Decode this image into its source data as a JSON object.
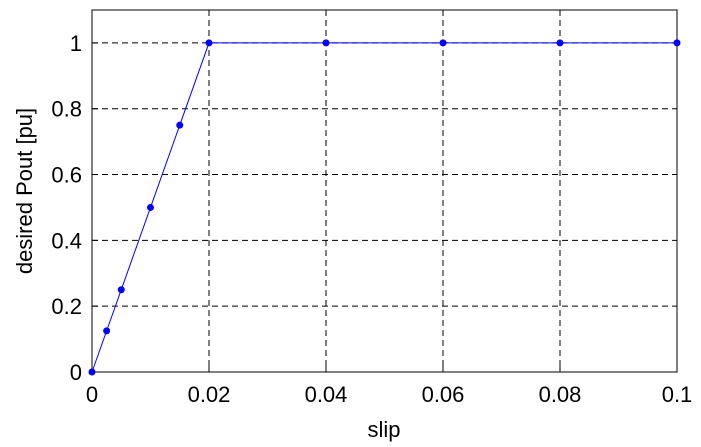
{
  "chart_data": {
    "type": "line",
    "x": [
      0,
      0.0025,
      0.005,
      0.01,
      0.015,
      0.02,
      0.04,
      0.06,
      0.08,
      0.1
    ],
    "series": [
      {
        "color": "#0000ff",
        "values": [
          0,
          0.125,
          0.25,
          0.5,
          0.75,
          1,
          1,
          1,
          1,
          1
        ]
      }
    ],
    "xlabel": "slip",
    "ylabel": "desired Pout [pu]",
    "xlim": [
      0,
      0.1
    ],
    "ylim": [
      0,
      1.1
    ],
    "xticks": [
      0,
      0.02,
      0.04,
      0.06,
      0.08,
      0.1
    ],
    "yticks": [
      0,
      0.2,
      0.4,
      0.6,
      0.8,
      1
    ],
    "grid": true,
    "marker": "circle"
  }
}
